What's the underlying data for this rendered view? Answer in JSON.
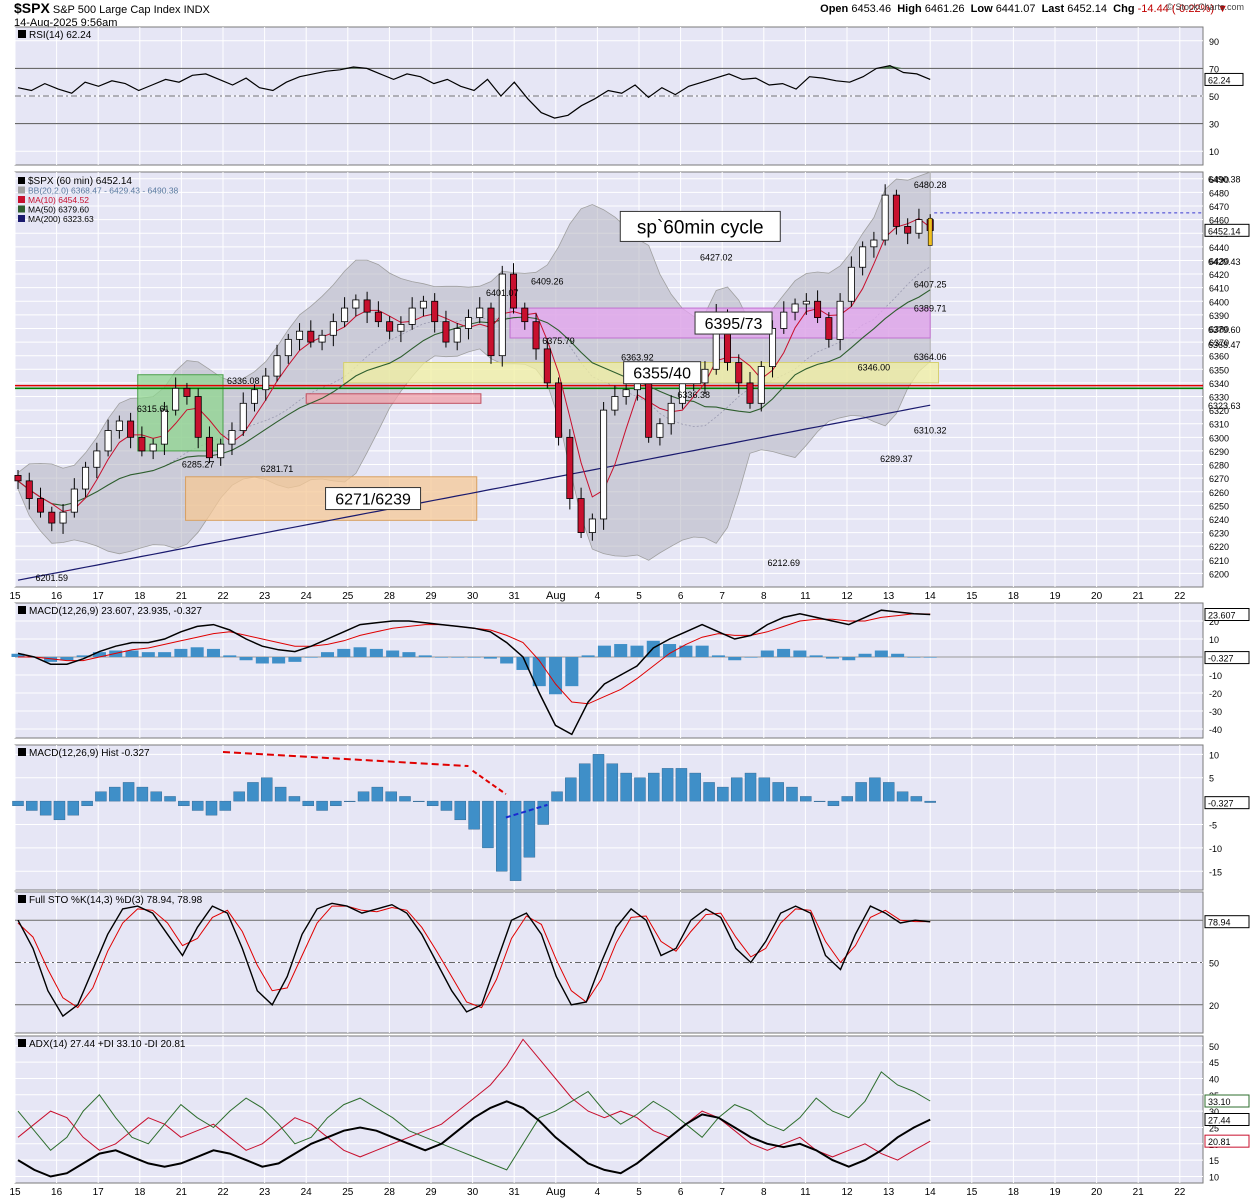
{
  "header": {
    "symbol": "$SPX",
    "name": "S&P 500 Large Cap Index",
    "exchange": "INDX",
    "datetime": "14-Aug-2025 9:56am",
    "open_label": "Open",
    "open": "6453.46",
    "high_label": "High",
    "high": "6461.26",
    "low_label": "Low",
    "low": "6441.07",
    "last_label": "Last",
    "last": "6452.14",
    "chg_label": "Chg",
    "chg": "-14.44 (-0.22%)",
    "watermark": "© StockCharts.com"
  },
  "colors": {
    "panel_bg": "#e6e6f5",
    "grid": "#ffffff",
    "up": "#ffffff",
    "down": "#c8102e",
    "ma10": "#c8102e",
    "ma50": "#2e5e2e",
    "ma200": "#1a1a6e",
    "bb": "#a0a0a0",
    "macd": "#000000",
    "signal": "#e00000",
    "hist": "#3f8fc8",
    "pdi": "#2e6e2e",
    "mdi": "#c8102e"
  },
  "chart_data": [
    {
      "type": "line",
      "panel": "rsi",
      "legend": "RSI(14) 62.24",
      "last_value_label": "62.24",
      "ylim": [
        0,
        100
      ],
      "y_ticks": [
        10,
        30,
        50,
        70,
        90
      ],
      "reference_lines": [
        30,
        50,
        70
      ],
      "values": [
        56,
        54,
        59,
        55,
        52,
        60,
        57,
        61,
        59,
        54,
        58,
        62,
        60,
        65,
        66,
        62,
        58,
        63,
        56,
        54,
        60,
        64,
        66,
        68,
        69,
        71,
        70,
        66,
        62,
        66,
        64,
        59,
        62,
        57,
        54,
        62,
        50,
        60,
        48,
        38,
        34,
        36,
        43,
        48,
        54,
        52,
        58,
        49,
        56,
        51,
        57,
        60,
        63,
        66,
        62,
        63,
        58,
        59,
        55,
        64,
        63,
        61,
        60,
        64,
        70,
        72,
        67,
        66,
        62
      ]
    },
    {
      "type": "candlestick",
      "panel": "price",
      "legend": [
        "$SPX (60 min) 6452.14",
        "BB(20,2.0) 6368.47 - 6429.43 - 6490.38",
        "MA(10) 6454.52",
        "MA(50) 6379.60",
        "MA(200) 6323.63"
      ],
      "ylim": [
        6190,
        6495
      ],
      "y_ticks": [
        6200,
        6210,
        6220,
        6230,
        6240,
        6250,
        6260,
        6270,
        6280,
        6290,
        6300,
        6310,
        6320,
        6330,
        6340,
        6350,
        6360,
        6370,
        6380,
        6390,
        6400,
        6410,
        6420,
        6430,
        6440,
        6450,
        6460,
        6470,
        6480,
        6490
      ],
      "x_labels": [
        "15",
        "16",
        "17",
        "18",
        "21",
        "22",
        "23",
        "24",
        "25",
        "28",
        "29",
        "30",
        "31",
        "Aug",
        "4",
        "5",
        "6",
        "7",
        "8",
        "11",
        "12",
        "13",
        "14",
        "15",
        "18",
        "19",
        "20",
        "21",
        "22"
      ],
      "right_labels": [
        {
          "text": "6490.38",
          "value": 6490.38
        },
        {
          "text": "6452.14",
          "value": 6452.14,
          "boxed": true
        },
        {
          "text": "6429.43",
          "value": 6429.43
        },
        {
          "text": "6379.60",
          "value": 6379.6
        },
        {
          "text": "6368.47",
          "value": 6368.47
        },
        {
          "text": "6323.63",
          "value": 6323.63
        }
      ],
      "closes": [
        6268,
        6255,
        6245,
        6237,
        6245,
        6262,
        6278,
        6290,
        6305,
        6312,
        6300,
        6290,
        6295,
        6320,
        6336,
        6330,
        6300,
        6285,
        6295,
        6305,
        6325,
        6335,
        6345,
        6360,
        6372,
        6378,
        6370,
        6375,
        6385,
        6395,
        6401,
        6392,
        6385,
        6378,
        6383,
        6395,
        6400,
        6385,
        6370,
        6380,
        6388,
        6395,
        6360,
        6420,
        6395,
        6385,
        6365,
        6340,
        6300,
        6255,
        6230,
        6240,
        6320,
        6330,
        6335,
        6340,
        6300,
        6310,
        6325,
        6345,
        6340,
        6350,
        6390,
        6355,
        6340,
        6325,
        6352,
        6380,
        6392,
        6398,
        6400,
        6388,
        6372,
        6400,
        6425,
        6440,
        6445,
        6478,
        6455,
        6450,
        6460,
        6452
      ],
      "ma200": {
        "start": 6195,
        "end": 6323.63
      },
      "annotations": [
        {
          "text": "6201.59",
          "at": 3,
          "value": 6201.59,
          "where": "below"
        },
        {
          "text": "6315.61",
          "at": 12,
          "value": 6315.61,
          "where": "above"
        },
        {
          "text": "6285.27",
          "at": 16,
          "value": 6285.27,
          "where": "below"
        },
        {
          "text": "6336.08",
          "at": 20,
          "value": 6336.08,
          "where": "above"
        },
        {
          "text": "6281.71",
          "at": 23,
          "value": 6281.71,
          "where": "below"
        },
        {
          "text": "6401.07",
          "at": 43,
          "value": 6401.07,
          "where": "above"
        },
        {
          "text": "6409.26",
          "at": 47,
          "value": 6409.26,
          "where": "above"
        },
        {
          "text": "6375.79",
          "at": 48,
          "value": 6375.79,
          "where": "below"
        },
        {
          "text": "6363.92",
          "at": 55,
          "value": 6363.92,
          "where": "below"
        },
        {
          "text": "6336.38",
          "at": 60,
          "value": 6336.38,
          "where": "below"
        },
        {
          "text": "6427.02",
          "at": 62,
          "value": 6427.02,
          "where": "above"
        },
        {
          "text": "6212.69",
          "at": 68,
          "value": 6212.69,
          "where": "below"
        },
        {
          "text": "6346.00",
          "at": 76,
          "value": 6346.0,
          "where": "above"
        },
        {
          "text": "6289.37",
          "at": 78,
          "value": 6289.37,
          "where": "below"
        },
        {
          "text": "6389.71",
          "at": 86,
          "value": 6389.71,
          "where": "above"
        },
        {
          "text": "6310.32",
          "at": 90,
          "value": 6310.32,
          "where": "below"
        },
        {
          "text": "6407.25",
          "at": 98,
          "value": 6407.25,
          "where": "above"
        },
        {
          "text": "6364.06",
          "at": 101,
          "value": 6364.06,
          "where": "below"
        },
        {
          "text": "6480.28",
          "at": 107,
          "value": 6480.28,
          "where": "above"
        }
      ],
      "horizontal_lines": [
        {
          "value": 6338,
          "color": "#e00000"
        },
        {
          "value": 6336,
          "color": "#008000"
        }
      ],
      "zones": [
        {
          "label": "6395/73",
          "from_day": 11.9,
          "to_day": 22.0,
          "low": 6373,
          "high": 6395,
          "fill": "#e6a6f0",
          "stroke": "#c070d0"
        },
        {
          "label": "6355/40",
          "from_day": 7.9,
          "to_day": 22.2,
          "low": 6340,
          "high": 6355,
          "fill": "#f2f0a0",
          "stroke": "#d6d070"
        },
        {
          "label": "6271/6239",
          "from_day": 4.1,
          "to_day": 11.1,
          "low": 6239,
          "high": 6271,
          "fill": "#f6c896",
          "stroke": "#d8a060"
        },
        {
          "label": "",
          "from_day": 2.95,
          "to_day": 5.0,
          "low": 6290,
          "high": 6346,
          "fill": "#8fd68f",
          "stroke": "#4aa04a"
        },
        {
          "label": "",
          "from_day": 7.0,
          "to_day": 11.2,
          "low": 6325,
          "high": 6332,
          "fill": "#f0a0a8",
          "stroke": "#c05060"
        }
      ],
      "callout": {
        "text": "sp`60min cycle"
      }
    },
    {
      "type": "line",
      "panel": "macd",
      "legend": "MACD(12,26,9) 23.607, 23.935, -0.327",
      "ylim": [
        -45,
        30
      ],
      "y_ticks": [
        -40,
        -30,
        -20,
        -10,
        10,
        20
      ],
      "right_labels": [
        {
          "text": "23.607",
          "value": 23.607,
          "boxed": true
        },
        {
          "text": "-0.327",
          "value": -0.327,
          "boxed": true
        }
      ],
      "macd": [
        2,
        0,
        -4,
        -4,
        -1,
        3,
        6,
        8,
        8,
        10,
        14,
        17,
        18,
        15,
        10,
        6,
        4,
        3,
        6,
        10,
        14,
        18,
        19,
        20,
        20,
        19,
        18,
        17,
        16,
        14,
        8,
        0,
        -20,
        -38,
        -43,
        -25,
        -15,
        -10,
        -5,
        5,
        10,
        14,
        18,
        14,
        10,
        12,
        18,
        22,
        24,
        22,
        20,
        18,
        22,
        26,
        25,
        24,
        23.6
      ],
      "signal": [
        0,
        0,
        -1,
        -2,
        -2,
        0,
        2,
        4,
        5,
        7,
        9,
        11,
        13,
        14,
        12,
        10,
        8,
        6,
        6,
        7,
        9,
        12,
        14,
        16,
        17,
        18,
        18,
        17,
        16,
        15,
        12,
        8,
        -2,
        -15,
        -25,
        -26,
        -22,
        -18,
        -12,
        -5,
        2,
        7,
        11,
        13,
        12,
        12,
        14,
        17,
        20,
        21,
        21,
        20,
        20,
        22,
        23,
        24,
        23.9
      ]
    },
    {
      "type": "bar",
      "panel": "macd_hist",
      "legend": "MACD(12,26,9) Hist -0.327",
      "ylim": [
        -19,
        12
      ],
      "y_ticks": [
        -15,
        -10,
        -5,
        5,
        10
      ],
      "right_labels": [
        {
          "text": "-0.327",
          "value": -0.327,
          "boxed": true
        }
      ],
      "values": [
        -1,
        -2,
        -3,
        -4,
        -3,
        -1,
        2,
        3,
        4,
        3,
        2,
        1,
        -1,
        -2,
        -3,
        -2,
        2,
        4,
        5,
        3,
        1,
        -1,
        -2,
        -1,
        0,
        2,
        3,
        2,
        1,
        0,
        -1,
        -2,
        -4,
        -6,
        -10,
        -15,
        -17,
        -12,
        -5,
        2,
        5,
        8,
        10,
        8,
        6,
        5,
        6,
        7,
        7,
        6,
        4,
        3,
        5,
        6,
        5,
        4,
        3,
        1,
        0,
        -1,
        1,
        4,
        5,
        4,
        2,
        1,
        -0.3
      ]
    },
    {
      "type": "line",
      "panel": "stochastic",
      "legend": "Full STO %K(14,3) %D(3) 78.94, 78.98",
      "ylim": [
        0,
        100
      ],
      "y_ticks": [
        20,
        50,
        80
      ],
      "right_labels": [
        {
          "text": "78.94",
          "value": 78.94,
          "boxed": true
        }
      ],
      "k": [
        80,
        60,
        30,
        12,
        20,
        45,
        70,
        88,
        90,
        85,
        70,
        55,
        75,
        90,
        85,
        60,
        30,
        20,
        40,
        70,
        88,
        92,
        90,
        85,
        88,
        91,
        85,
        70,
        50,
        30,
        15,
        20,
        50,
        80,
        85,
        70,
        40,
        20,
        22,
        50,
        75,
        88,
        80,
        55,
        60,
        80,
        88,
        82,
        60,
        50,
        65,
        85,
        90,
        85,
        55,
        45,
        70,
        90,
        85,
        78,
        80,
        78.9
      ],
      "d": [
        78,
        68,
        45,
        25,
        18,
        32,
        58,
        78,
        88,
        87,
        78,
        62,
        67,
        82,
        87,
        72,
        48,
        30,
        32,
        55,
        78,
        90,
        90,
        87,
        86,
        89,
        87,
        75,
        58,
        40,
        22,
        18,
        38,
        67,
        83,
        77,
        52,
        30,
        22,
        38,
        64,
        82,
        83,
        65,
        58,
        72,
        84,
        85,
        68,
        54,
        60,
        78,
        88,
        87,
        65,
        50,
        62,
        82,
        87,
        80,
        79,
        79
      ]
    },
    {
      "type": "line",
      "panel": "adx",
      "legend": "ADX(14) 27.44 +DI 33.10 -DI 20.81",
      "ylim": [
        8,
        53
      ],
      "y_ticks": [
        10,
        15,
        20,
        25,
        30,
        35,
        40,
        45,
        50
      ],
      "right_labels": [
        {
          "text": "33.10",
          "value": 33.1,
          "boxed": true
        },
        {
          "text": "27.44",
          "value": 27.44,
          "boxed": true
        },
        {
          "text": "20.81",
          "value": 20.81,
          "boxed": true
        }
      ],
      "adx": [
        15,
        12,
        10,
        11,
        14,
        17,
        18,
        16,
        14,
        13,
        14,
        16,
        18,
        17,
        15,
        13,
        14,
        17,
        20,
        22,
        24,
        25,
        24,
        22,
        20,
        18,
        20,
        24,
        28,
        31,
        33,
        31,
        27,
        22,
        18,
        14,
        12,
        11,
        14,
        18,
        22,
        26,
        29,
        28,
        25,
        22,
        20,
        19,
        20,
        18,
        15,
        13,
        15,
        18,
        22,
        25,
        27.4
      ],
      "pdi": [
        30,
        24,
        18,
        22,
        30,
        35,
        28,
        22,
        20,
        26,
        32,
        28,
        25,
        30,
        34,
        31,
        26,
        20,
        22,
        28,
        32,
        34,
        31,
        28,
        24,
        22,
        20,
        18,
        16,
        14,
        12,
        20,
        28,
        30,
        33,
        36,
        30,
        26,
        29,
        33,
        30,
        26,
        22,
        28,
        32,
        30,
        26,
        24,
        28,
        34,
        30,
        28,
        33,
        42,
        38,
        36,
        33.1
      ],
      "mdi": [
        22,
        26,
        30,
        28,
        22,
        18,
        20,
        24,
        28,
        26,
        22,
        24,
        26,
        22,
        18,
        20,
        24,
        28,
        26,
        22,
        18,
        16,
        18,
        20,
        22,
        24,
        26,
        30,
        34,
        38,
        44,
        52,
        46,
        40,
        34,
        30,
        28,
        30,
        28,
        24,
        22,
        26,
        30,
        28,
        24,
        20,
        18,
        20,
        22,
        18,
        16,
        18,
        20,
        17,
        15,
        18,
        20.8
      ]
    }
  ]
}
